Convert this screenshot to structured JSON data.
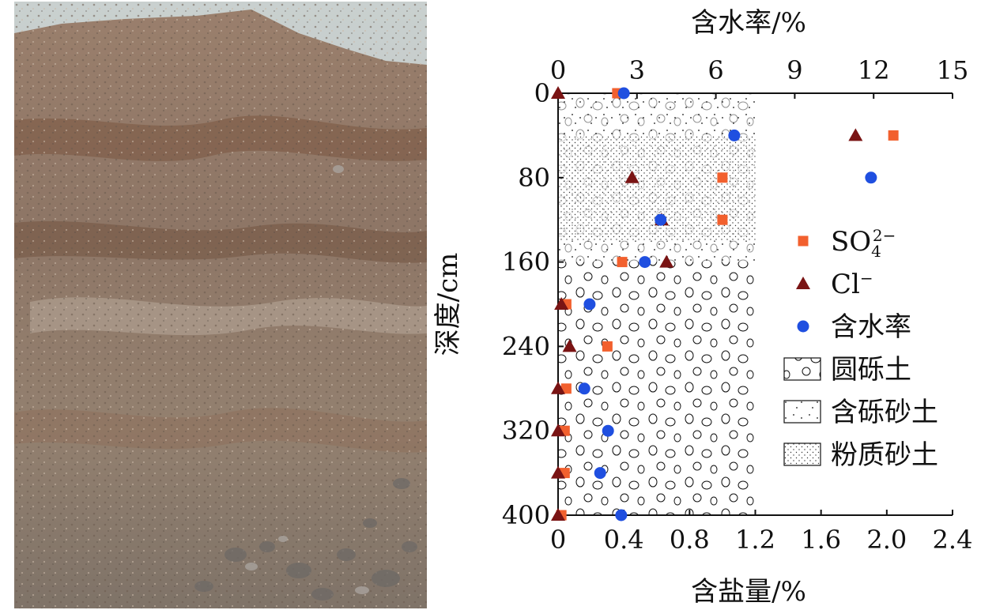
{
  "photo": {
    "subject": "soil profile outcrop"
  },
  "chart_data": {
    "type": "scatter",
    "y_axis": {
      "label": "深度/cm",
      "ticks": [
        0,
        80,
        160,
        240,
        320,
        400
      ],
      "lim": [
        0,
        400
      ],
      "inverted": true
    },
    "x_axis_bottom": {
      "label": "含盐量/%",
      "ticks": [
        "0",
        "0.4",
        "0.8",
        "1.2",
        "1.6",
        "2.0",
        "2.4"
      ],
      "lim": [
        0,
        2.4
      ]
    },
    "x_axis_top": {
      "label": "含水率/%",
      "ticks": [
        "0",
        "3",
        "6",
        "9",
        "12",
        "15"
      ],
      "lim": [
        0,
        15
      ]
    },
    "series": [
      {
        "name": "SO₄²⁻",
        "axis": "bottom",
        "marker": "square",
        "color": "#f2602e",
        "points": [
          [
            0.36,
            0
          ],
          [
            2.04,
            40
          ],
          [
            1.0,
            80
          ],
          [
            1.0,
            120
          ],
          [
            0.39,
            160
          ],
          [
            0.05,
            200
          ],
          [
            0.3,
            240
          ],
          [
            0.05,
            280
          ],
          [
            0.04,
            320
          ],
          [
            0.04,
            360
          ],
          [
            0.02,
            400
          ]
        ]
      },
      {
        "name": "Cl⁻",
        "axis": "bottom",
        "marker": "triangle",
        "color": "#7a1414",
        "points": [
          [
            0.0,
            0
          ],
          [
            1.81,
            40
          ],
          [
            0.45,
            80
          ],
          [
            0.63,
            120
          ],
          [
            0.66,
            160
          ],
          [
            0.02,
            200
          ],
          [
            0.07,
            240
          ],
          [
            0.0,
            280
          ],
          [
            0.0,
            320
          ],
          [
            0.0,
            360
          ],
          [
            0.0,
            400
          ]
        ]
      },
      {
        "name": "含水率",
        "axis": "top",
        "marker": "circle",
        "color": "#1f4fe0",
        "points": [
          [
            2.5,
            0
          ],
          [
            6.7,
            40
          ],
          [
            11.9,
            80
          ],
          [
            3.9,
            120
          ],
          [
            3.3,
            160
          ],
          [
            1.2,
            200
          ],
          [
            1.0,
            280
          ],
          [
            1.9,
            320
          ],
          [
            1.6,
            360
          ],
          [
            2.4,
            400
          ]
        ]
      }
    ],
    "strata": [
      {
        "name": "圆砾土",
        "from": 0,
        "to": 400,
        "pattern": "gravel"
      },
      {
        "name": "含砾砂土",
        "from": 0,
        "to": 160,
        "pattern": "gravelly-sand"
      },
      {
        "name": "粉质砂土",
        "from": 40,
        "to": 140,
        "pattern": "silty-sand"
      }
    ],
    "strata_extent": [
      0,
      1.2
    ],
    "legend": {
      "position": "right",
      "entries": [
        {
          "label": "SO",
          "sub": "4",
          "sup": "2−",
          "kind": "square"
        },
        {
          "label": "Cl",
          "sup": "−",
          "kind": "triangle"
        },
        {
          "label": "含水率",
          "kind": "circle"
        },
        {
          "label": "圆砾土",
          "kind": "gravel"
        },
        {
          "label": "含砾砂土",
          "kind": "gravelly-sand"
        },
        {
          "label": "粉质砂土",
          "kind": "silty-sand"
        }
      ]
    }
  }
}
